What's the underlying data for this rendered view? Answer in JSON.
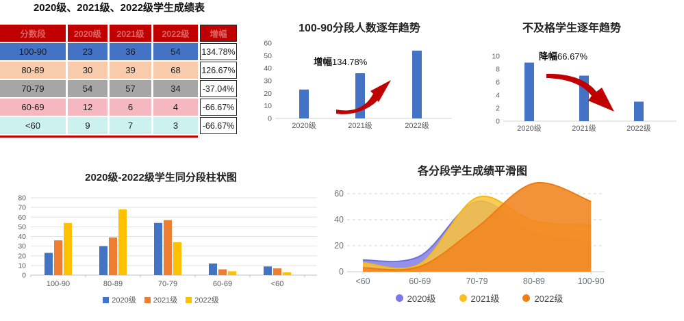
{
  "colors": {
    "bar_blue": "#4472C4",
    "excel_orange": "#ED7D31",
    "excel_yellow": "#FFC000",
    "table_header_bg": "#C00000",
    "table_header_text": "#E06363",
    "arrow_red": "#C00000",
    "axis_text": "#595959",
    "echarts_text": "#6E7079"
  },
  "table": {
    "title": "2020级、2021级、2022级学生成绩表",
    "headers": [
      "分数段",
      "2020级",
      "2021级",
      "2022级",
      "增幅"
    ],
    "rows": [
      {
        "label": "100-90",
        "values": [
          "23",
          "36",
          "54"
        ],
        "growth": "134.78%",
        "bg": "#4472C4"
      },
      {
        "label": "80-89",
        "values": [
          "30",
          "39",
          "68"
        ],
        "growth": "126.67%",
        "bg": "#F8CBAD"
      },
      {
        "label": "70-79",
        "values": [
          "54",
          "57",
          "34"
        ],
        "growth": "-37.04%",
        "bg": "#A6A6A6"
      },
      {
        "label": "60-69",
        "values": [
          "12",
          "6",
          "4"
        ],
        "growth": "-66.67%",
        "bg": "#F5B8C1"
      },
      {
        "label": "<60",
        "values": [
          "9",
          "7",
          "3"
        ],
        "growth": "-66.67%",
        "bg": "#CDF1EF"
      }
    ]
  },
  "chart_data": [
    {
      "id": "top-trend",
      "type": "bar",
      "title": "100-90分段人数逐年趋势",
      "categories": [
        "2020级",
        "2021级",
        "2022级"
      ],
      "values": [
        23,
        36,
        54
      ],
      "ylim": [
        0,
        60
      ],
      "yticks": [
        0,
        10,
        20,
        30,
        40,
        50,
        60
      ],
      "bar_color": "#4472C4",
      "annotation_prefix": "增幅",
      "annotation_value": "134.78%",
      "arrow": "up",
      "grid": false,
      "legend_position": "none"
    },
    {
      "id": "fail-trend",
      "type": "bar",
      "title": "不及格学生逐年趋势",
      "categories": [
        "2020级",
        "2021级",
        "2022级"
      ],
      "values": [
        9,
        7,
        3
      ],
      "ylim": [
        0,
        10
      ],
      "yticks": [
        0,
        2,
        4,
        6,
        8,
        10
      ],
      "bar_color": "#4472C4",
      "annotation_prefix": "降幅",
      "annotation_value": "66.67%",
      "arrow": "down",
      "grid": false,
      "legend_position": "none"
    },
    {
      "id": "grouped-bars",
      "type": "bar",
      "title": "2020级-2022级学生同分段柱状图",
      "categories": [
        "100-90",
        "80-89",
        "70-79",
        "60-69",
        "<60"
      ],
      "series": [
        {
          "name": "2020级",
          "color": "#4472C4",
          "values": [
            23,
            30,
            54,
            12,
            9
          ]
        },
        {
          "name": "2021级",
          "color": "#ED7D31",
          "values": [
            36,
            39,
            57,
            6,
            7
          ]
        },
        {
          "name": "2022级",
          "color": "#FFC000",
          "values": [
            54,
            68,
            34,
            4,
            3
          ]
        }
      ],
      "ylim": [
        0,
        80
      ],
      "yticks": [
        0,
        10,
        20,
        30,
        40,
        50,
        60,
        70,
        80
      ],
      "grid": true,
      "legend_position": "bottom"
    },
    {
      "id": "smooth-area",
      "type": "area",
      "title": "各分段学生成绩平滑图",
      "categories": [
        "<60",
        "60-69",
        "70-79",
        "80-89",
        "100-90"
      ],
      "series": [
        {
          "name": "2020级",
          "legend_color": "#7B79E8",
          "line_color": "#706EDD",
          "fill": "rgba(128,126,228,0.85)",
          "values": [
            9,
            12,
            54,
            30,
            23
          ]
        },
        {
          "name": "2021级",
          "legend_color": "#FBBE23",
          "line_color": "#F5B912",
          "fill": "rgba(250,195,60,0.85)",
          "values": [
            7,
            6,
            57,
            39,
            36
          ]
        },
        {
          "name": "2022级",
          "legend_color": "#F17E17",
          "line_color": "#EC7C12",
          "fill": "rgba(242,135,35,0.9)",
          "values": [
            3,
            4,
            34,
            68,
            54
          ]
        }
      ],
      "ylim": [
        0,
        70
      ],
      "yticks": [
        0,
        20,
        40,
        60
      ],
      "smooth": true,
      "grid": "dashed",
      "legend_position": "bottom"
    }
  ]
}
